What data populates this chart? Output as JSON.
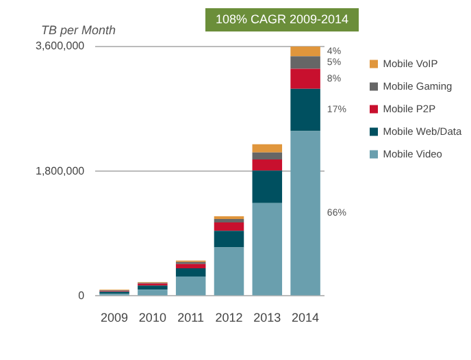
{
  "chart_data": {
    "type": "bar",
    "title": "108% CAGR 2009-2014",
    "ylabel": "TB per Month",
    "categories": [
      "2009",
      "2010",
      "2011",
      "2012",
      "2013",
      "2014"
    ],
    "stacked": true,
    "series": [
      {
        "name": "Mobile Video",
        "color": "#6a9fae",
        "values": [
          30000,
          90000,
          280000,
          700000,
          1340000,
          2380000
        ]
      },
      {
        "name": "Mobile Web/Data",
        "color": "#005060",
        "values": [
          30000,
          60000,
          120000,
          240000,
          470000,
          610000
        ]
      },
      {
        "name": "Mobile P2P",
        "color": "#c8102e",
        "values": [
          10000,
          30000,
          60000,
          120000,
          160000,
          290000
        ]
      },
      {
        "name": "Mobile Gaming",
        "color": "#666666",
        "values": [
          10000,
          10000,
          30000,
          50000,
          100000,
          180000
        ]
      },
      {
        "name": "Mobile VoIP",
        "color": "#e0963c",
        "values": [
          10000,
          10000,
          20000,
          40000,
          120000,
          140000
        ]
      }
    ],
    "annotations": [
      "4%",
      "5%",
      "8%",
      "17%",
      "66%"
    ],
    "ylim": [
      0,
      3600000
    ],
    "yticks": [
      {
        "value": 0,
        "label": "0"
      },
      {
        "value": 1800000,
        "label": "1,800,000"
      },
      {
        "value": 3600000,
        "label": "3,600,000"
      }
    ],
    "grid": "y",
    "legend": "right"
  }
}
